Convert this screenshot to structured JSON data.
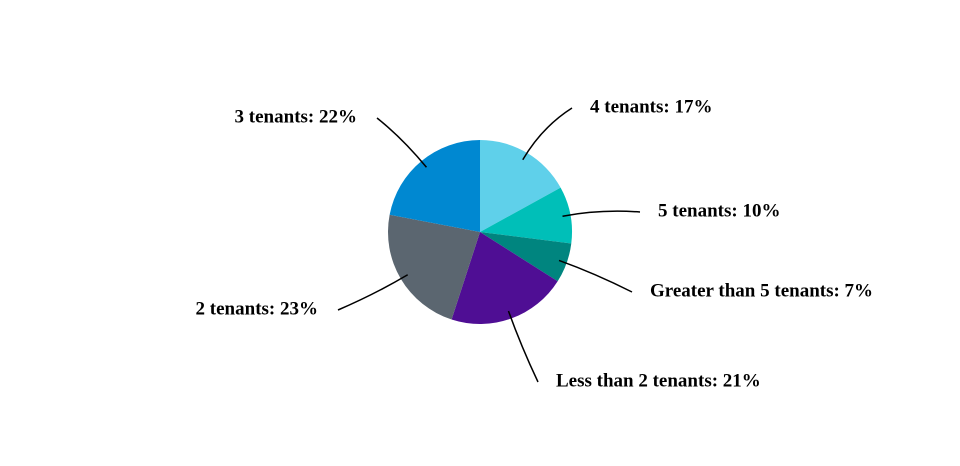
{
  "chart_data": {
    "type": "pie",
    "values": [
      17,
      10,
      7,
      21,
      23,
      22
    ],
    "value_labels": [
      "4 tenants: 17%",
      "5 tenants: 10%",
      "Greater than 5 tenants: 7%",
      "Less than 2 tenants: 21%",
      "2 tenants: 23%",
      "3 tenants: 22%"
    ],
    "colors": [
      "#5fd0ea",
      "#00bfb8",
      "#00857f",
      "#4f0e94",
      "#5b6670",
      "#0088d1"
    ]
  }
}
